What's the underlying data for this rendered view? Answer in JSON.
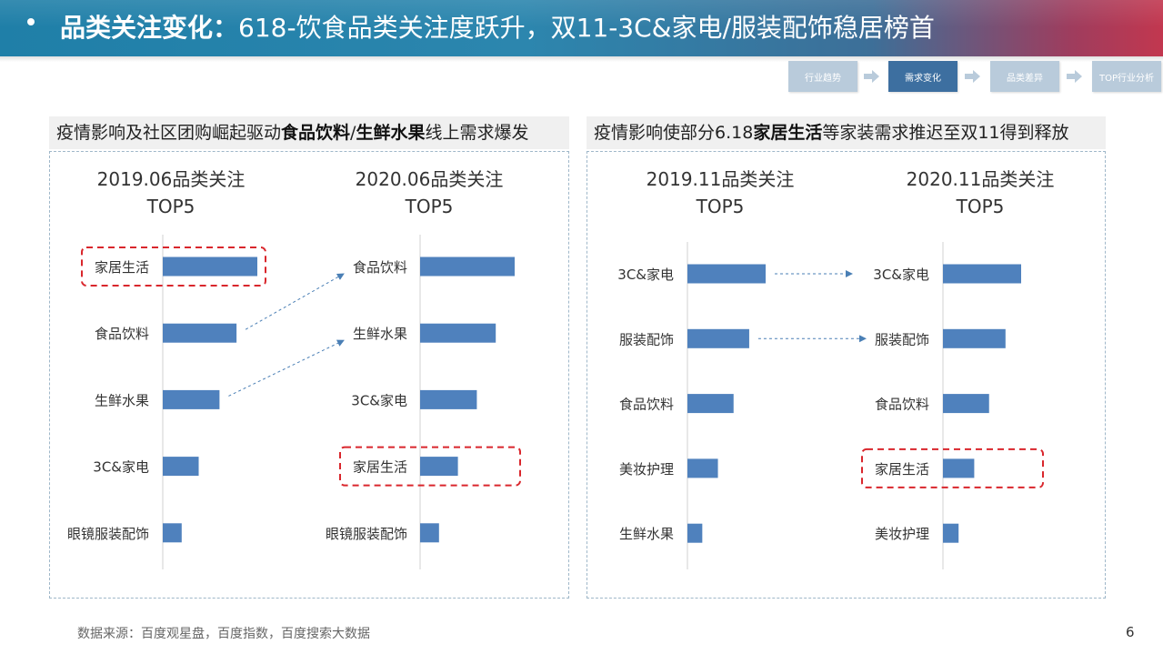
{
  "header": {
    "title_bold": "品类关注变化：",
    "title_rest": "618-饮食品类关注度跃升，双11-3C&家电/服装配饰稳居榜首"
  },
  "steps": [
    {
      "label": "行业趋势",
      "active": false
    },
    {
      "label": "需求变化",
      "active": true
    },
    {
      "label": "品类差异",
      "active": false
    },
    {
      "label": "TOP行业分析",
      "active": false
    }
  ],
  "panels": [
    {
      "head_parts": [
        {
          "text": "疫情影响及社区团购崛起驱动",
          "bold": false
        },
        {
          "text": "食品饮料",
          "bold": true
        },
        {
          "text": "/",
          "bold": false
        },
        {
          "text": "生鲜水果",
          "bold": true
        },
        {
          "text": "线上需求爆发",
          "bold": false
        }
      ]
    },
    {
      "head_parts": [
        {
          "text": "疫情影响使部分6.18",
          "bold": false
        },
        {
          "text": "家居生活",
          "bold": true
        },
        {
          "text": "等家装需求推迟至双11得到释放",
          "bold": false
        }
      ]
    }
  ],
  "chart_data": [
    {
      "type": "bar",
      "orientation": "horizontal",
      "title": "2019.06品类关注\nTOP5",
      "categories": [
        "家居生活",
        "食品饮料",
        "生鲜水果",
        "3C&家电",
        "眼镜服装配饰"
      ],
      "values": [
        100,
        78,
        60,
        38,
        20
      ],
      "highlight": "家居生活"
    },
    {
      "type": "bar",
      "orientation": "horizontal",
      "title": "2020.06品类关注\nTOP5",
      "categories": [
        "食品饮料",
        "生鲜水果",
        "3C&家电",
        "家居生活",
        "眼镜服装配饰"
      ],
      "values": [
        100,
        80,
        60,
        40,
        20
      ],
      "highlight": "家居生活"
    },
    {
      "type": "bar",
      "orientation": "horizontal",
      "title": "2019.11品类关注\nTOP5",
      "categories": [
        "3C&家电",
        "服装配饰",
        "食品饮料",
        "美妆护理",
        "生鲜水果"
      ],
      "values": [
        100,
        79,
        59,
        39,
        19
      ],
      "highlight": ""
    },
    {
      "type": "bar",
      "orientation": "horizontal",
      "title": "2020.11品类关注\nTOP5",
      "categories": [
        "3C&家电",
        "服装配饰",
        "食品饮料",
        "家居生活",
        "美妆护理"
      ],
      "values": [
        100,
        80,
        59,
        40,
        20
      ],
      "highlight": "家居生活"
    }
  ],
  "colors": {
    "bar": "#4f81bd",
    "highlight_box": "#d9262c",
    "connector": "#4a7fb5",
    "axis": "#d0d0d0"
  },
  "footer": {
    "source": "数据来源：百度观星盘，百度指数，百度搜索大数据",
    "page": "6"
  }
}
